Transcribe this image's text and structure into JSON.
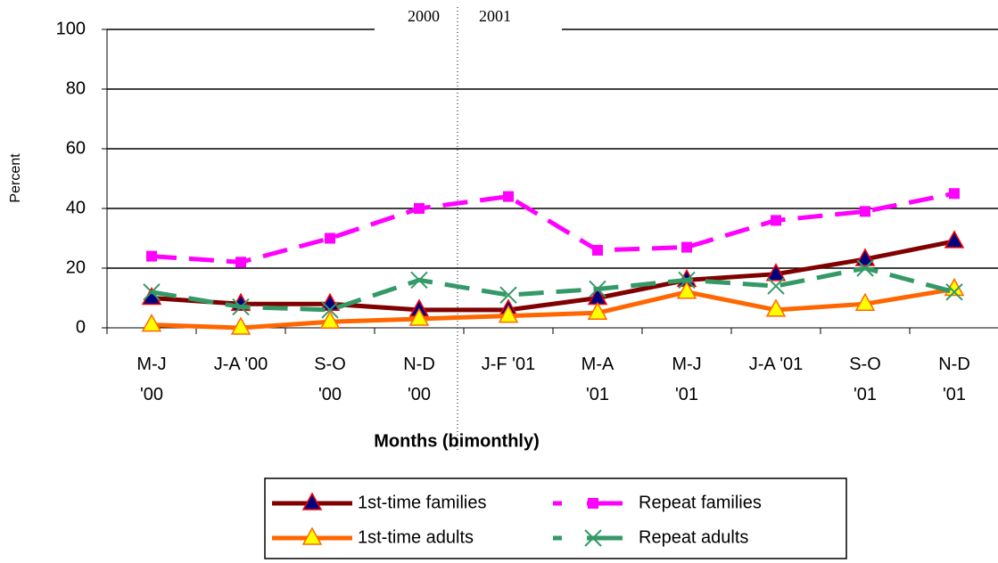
{
  "chart_data": {
    "type": "line",
    "x_label": "Months (bimonthly)",
    "y_label": "Percent",
    "categories": [
      "M-J\n'00",
      "J-A '00",
      "S-O\n'00",
      "N-D\n'00",
      "J-F '01",
      "M-A\n'01",
      "M-J\n'01",
      "J-A '01",
      "S-O\n'01",
      "N-D\n'01"
    ],
    "ylim": [
      0,
      100
    ],
    "yticks": [
      0,
      20,
      40,
      60,
      80,
      100
    ],
    "grid": true,
    "annotations": [
      "2000",
      "2001"
    ],
    "series": [
      {
        "name": "1st-time families",
        "color": "#800000",
        "dashed": false,
        "marker": "triangle",
        "marker_fill": "#000080",
        "marker_stroke": "#ff0000",
        "values": [
          10,
          8,
          8,
          6,
          6,
          10,
          16,
          18,
          23,
          29
        ]
      },
      {
        "name": "Repeat families",
        "color": "#ff00ff",
        "dashed": true,
        "marker": "square",
        "marker_fill": "#ff00ff",
        "marker_stroke": "#ff00ff",
        "values": [
          24,
          22,
          30,
          40,
          44,
          26,
          27,
          36,
          39,
          45
        ]
      },
      {
        "name": "1st-time adults",
        "color": "#ff6600",
        "dashed": false,
        "marker": "triangle",
        "marker_fill": "#ffff00",
        "marker_stroke": "#ff6600",
        "values": [
          1,
          0,
          2,
          3,
          4,
          5,
          12,
          6,
          8,
          13
        ]
      },
      {
        "name": "Repeat adults",
        "color": "#339966",
        "dashed": true,
        "marker": "x",
        "marker_fill": "none",
        "marker_stroke": "#339966",
        "values": [
          12,
          7,
          6,
          16,
          11,
          13,
          16,
          14,
          20,
          12
        ]
      }
    ]
  }
}
